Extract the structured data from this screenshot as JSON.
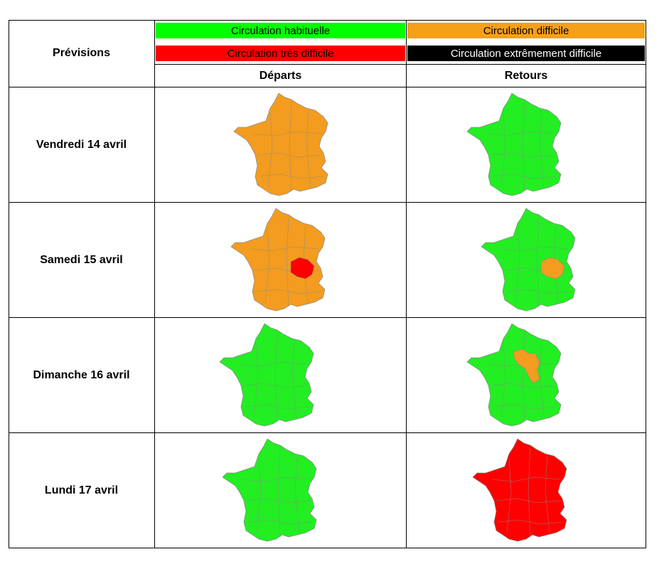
{
  "header": {
    "corner_label": "Prévisions",
    "col_departs": "Départs",
    "col_retours": "Retours"
  },
  "legend": [
    {
      "label": "Circulation habituelle",
      "color": "#00ff00",
      "text_color": "#000000"
    },
    {
      "label": "Circulation difficile",
      "color": "#f5a01a",
      "text_color": "#000000"
    },
    {
      "label": "Circulation très difficile",
      "color": "#ff0000",
      "text_color": "#000000"
    },
    {
      "label": "Circulation extrêmement difficile",
      "color": "#000000",
      "text_color": "#ffffff"
    }
  ],
  "rows": [
    {
      "day": "Vendredi 14 avril",
      "departs": "difficile",
      "retours": "habituelle",
      "departs_overlay": "",
      "retours_overlay": ""
    },
    {
      "day": "Samedi 15 avril",
      "departs": "difficile",
      "retours": "habituelle",
      "departs_overlay": "tres-difficile-rhone-alpes",
      "retours_overlay": "difficile-rhone-alpes"
    },
    {
      "day": "Dimanche 16 avril",
      "departs": "habituelle",
      "retours": "habituelle",
      "departs_overlay": "",
      "retours_overlay": "difficile-centre-bourgogne"
    },
    {
      "day": "Lundi 17 avril",
      "departs": "habituelle",
      "retours": "tres-difficile",
      "departs_overlay": "",
      "retours_overlay": ""
    }
  ],
  "colors": {
    "habituelle": "#22ee22",
    "difficile": "#f39c1f",
    "tres-difficile": "#ff0000",
    "border": "#8a8a8a"
  }
}
